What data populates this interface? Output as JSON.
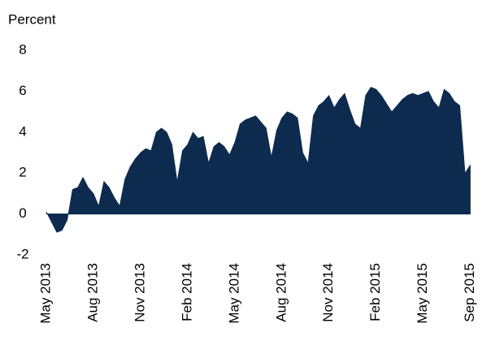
{
  "chart_data": {
    "type": "area",
    "y_label": "Percent",
    "color": "#0d2b4e",
    "ylim": [
      -2,
      8
    ],
    "yticks": [
      -2,
      0,
      2,
      4,
      6,
      8
    ],
    "categories": [
      "May 2013",
      null,
      null,
      null,
      null,
      null,
      null,
      null,
      null,
      "Aug 2013",
      null,
      null,
      null,
      null,
      null,
      null,
      null,
      null,
      "Nov 2013",
      null,
      null,
      null,
      null,
      null,
      null,
      null,
      null,
      "Feb 2014",
      null,
      null,
      null,
      null,
      null,
      null,
      null,
      null,
      "May 2014",
      null,
      null,
      null,
      null,
      null,
      null,
      null,
      null,
      "Aug 2014",
      null,
      null,
      null,
      null,
      null,
      null,
      null,
      null,
      "Nov 2014",
      null,
      null,
      null,
      null,
      null,
      null,
      null,
      null,
      "Feb 2015",
      null,
      null,
      null,
      null,
      null,
      null,
      null,
      null,
      "May 2015",
      null,
      null,
      null,
      null,
      null,
      null,
      null,
      null,
      "Sep 2015"
    ],
    "values": [
      0.1,
      -0.4,
      -0.9,
      -0.8,
      -0.3,
      1.2,
      1.3,
      1.8,
      1.3,
      1.0,
      0.4,
      1.6,
      1.3,
      0.8,
      0.4,
      1.7,
      2.3,
      2.7,
      3.0,
      3.2,
      3.1,
      4.0,
      4.2,
      4.0,
      3.4,
      1.6,
      3.1,
      3.4,
      4.0,
      3.7,
      3.8,
      2.5,
      3.3,
      3.5,
      3.3,
      2.9,
      3.5,
      4.4,
      4.6,
      4.7,
      4.8,
      4.5,
      4.2,
      2.8,
      4.1,
      4.7,
      5.0,
      4.9,
      4.7,
      3.0,
      2.5,
      4.8,
      5.3,
      5.5,
      5.8,
      5.2,
      5.6,
      5.9,
      5.1,
      4.4,
      4.2,
      5.8,
      6.2,
      6.1,
      5.8,
      5.4,
      5.0,
      5.3,
      5.6,
      5.8,
      5.9,
      5.8,
      5.9,
      6.0,
      5.5,
      5.2,
      6.1,
      5.9,
      5.5,
      5.3,
      2.0,
      2.4
    ]
  }
}
